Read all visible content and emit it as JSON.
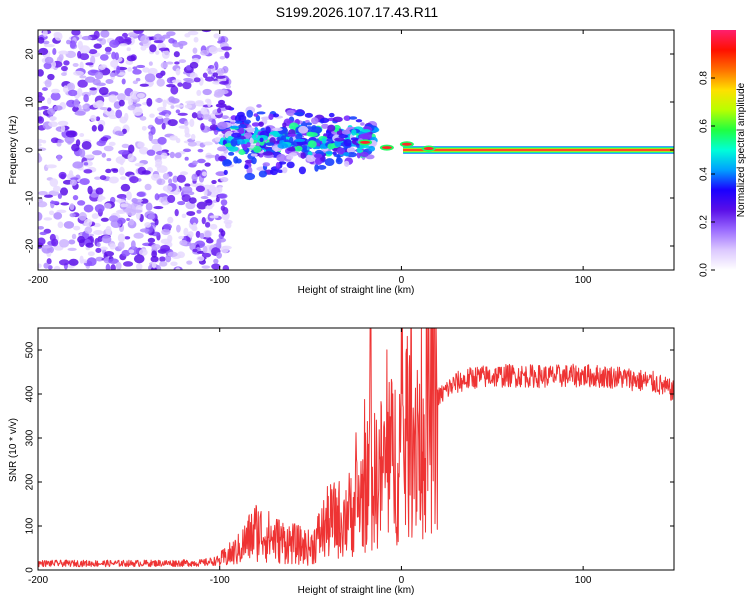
{
  "title": "S199.2026.107.17.43.R11",
  "chart_data": [
    {
      "type": "heatmap",
      "title": "S199.2026.107.17.43.R11",
      "xlabel": "Height of straight line (km)",
      "ylabel": "Frequency (Hz)",
      "xlim": [
        -200,
        150
      ],
      "ylim": [
        -25,
        25
      ],
      "xticks": [
        -200,
        -100,
        0,
        100
      ],
      "yticks": [
        -20,
        -10,
        0,
        10,
        20
      ],
      "colorbar": {
        "label": "Normalized spectral amplitude",
        "range": [
          0,
          1
        ],
        "ticks": [
          0.0,
          0.2,
          0.4,
          0.6,
          0.8
        ],
        "colors": [
          "#ffffff",
          "#dcc8ff",
          "#9b6bff",
          "#5a0fe8",
          "#1a00ff",
          "#00a0ff",
          "#00ffd8",
          "#20ff40",
          "#b8ff00",
          "#ffe000",
          "#ff7000",
          "#ff1000",
          "#ff1f6e"
        ]
      },
      "regions": [
        {
          "name": "noise",
          "x": [
            -200,
            -95
          ],
          "freq_spread": 25,
          "amplitude": 0.15
        },
        {
          "name": "transition",
          "x": [
            -100,
            -15
          ],
          "freq_spread": 10,
          "amplitude": 0.35
        },
        {
          "name": "carrier",
          "x": [
            -20,
            150
          ],
          "freq": 0,
          "amplitude": 1.0
        }
      ]
    },
    {
      "type": "line",
      "xlabel": "Height of straight line (km)",
      "ylabel": "SNR (10 * v/v)",
      "xlim": [
        -200,
        150
      ],
      "ylim": [
        0,
        550
      ],
      "xticks": [
        -200,
        -100,
        0,
        100
      ],
      "yticks": [
        0,
        100,
        200,
        300,
        400,
        500
      ],
      "series": [
        {
          "name": "SNR",
          "color": "#ee3333",
          "x": [
            -200,
            -150,
            -110,
            -100,
            -90,
            -80,
            -70,
            -60,
            -50,
            -40,
            -30,
            -25,
            -20,
            -15,
            -10,
            -5,
            0,
            5,
            10,
            15,
            20,
            25,
            30,
            40,
            60,
            80,
            100,
            120,
            140,
            150
          ],
          "values": [
            15,
            15,
            16,
            22,
            45,
            90,
            70,
            60,
            50,
            110,
            120,
            150,
            180,
            200,
            230,
            250,
            280,
            305,
            340,
            370,
            390,
            410,
            425,
            438,
            442,
            440,
            442,
            438,
            425,
            405
          ]
        }
      ]
    }
  ]
}
